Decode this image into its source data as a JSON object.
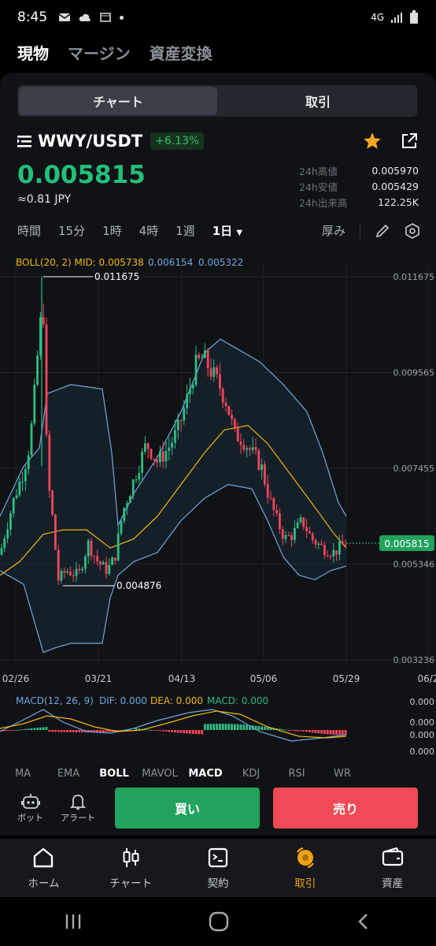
{
  "status": {
    "time": "8:45",
    "network": "4G"
  },
  "top_tabs": [
    {
      "label": "現物"
    },
    {
      "label": "マージン"
    },
    {
      "label": "資産変換"
    }
  ],
  "segment": {
    "chart": "チャート",
    "trade": "取引"
  },
  "pair": {
    "name": "WWY/USDT",
    "change": "+6.13%"
  },
  "price": {
    "last": "0.005815",
    "jpy": "≈0.81 JPY"
  },
  "stats": [
    {
      "label": "24h高値",
      "value": "0.005970"
    },
    {
      "label": "24h安値",
      "value": "0.005429"
    },
    {
      "label": "24h出来高",
      "value": "122.25K"
    }
  ],
  "intervals": [
    "時間",
    "15分",
    "1時",
    "4時",
    "1週",
    "1日"
  ],
  "interval_active": "1日",
  "depth_label": "厚み",
  "boll": {
    "label": "BOLL(20, 2) MID: 0.005738",
    "up": "0.006154",
    "dn": "0.005322"
  },
  "chart_data": {
    "type": "candlestick",
    "y_ticks": [
      "0.011675",
      "0.009565",
      "0.007455",
      "0.005346",
      "0.003236"
    ],
    "x_ticks": [
      "02/26",
      "03/21",
      "04/13",
      "05/06",
      "05/29",
      "06/2"
    ],
    "ylim": [
      0.003236,
      0.011675
    ],
    "current_price": "0.005815",
    "max_label": "0.011675",
    "min_label": "0.004876",
    "colors": {
      "up": "#2ebd85",
      "down": "#f6465d",
      "mid": "#f0b90b",
      "band": "#6fa8dc"
    }
  },
  "macd": {
    "label": "MACD(12, 26, 9)",
    "dif": "DIF: 0.000",
    "dea": "DEA: 0.000",
    "macd": "MACD: 0.000",
    "axis": [
      "0.000",
      "0.000",
      "0.000",
      "0.000"
    ]
  },
  "indicator_tabs": [
    "MA",
    "EMA",
    "BOLL",
    "MAVOL",
    "MACD",
    "KDJ",
    "RSI",
    "WR"
  ],
  "actions": {
    "bot": "ボット",
    "alert": "アラート",
    "buy": "買い",
    "sell": "売り"
  },
  "bottom_nav": [
    {
      "label": "ホーム"
    },
    {
      "label": "チャート"
    },
    {
      "label": "契約"
    },
    {
      "label": "取引"
    },
    {
      "label": "資産"
    }
  ]
}
